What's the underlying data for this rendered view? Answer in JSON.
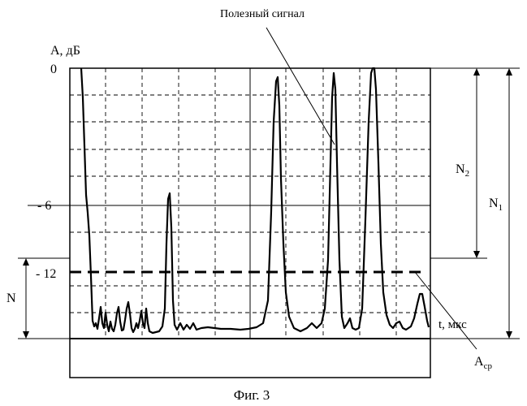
{
  "figure": {
    "caption": "Фиг. 3",
    "useful_signal_label": "Полезный сигнал",
    "y_axis_label": "А, дБ",
    "x_axis_label": "t, мкс",
    "tick_labels": [
      "0",
      "- 6",
      "- 12"
    ],
    "threshold_label": "А",
    "threshold_label_sub": "ср",
    "n_label": "N",
    "n1_label": "N",
    "n1_sub": "1",
    "n2_label": "N",
    "n2_sub": "2"
  },
  "chart_data": {
    "type": "line",
    "ylabel": "А, дБ",
    "xlabel": "t, мкс",
    "yticks": [
      0,
      -6,
      -12
    ],
    "ylim": [
      -18,
      0
    ],
    "threshold_level": -12,
    "grid": true
  }
}
